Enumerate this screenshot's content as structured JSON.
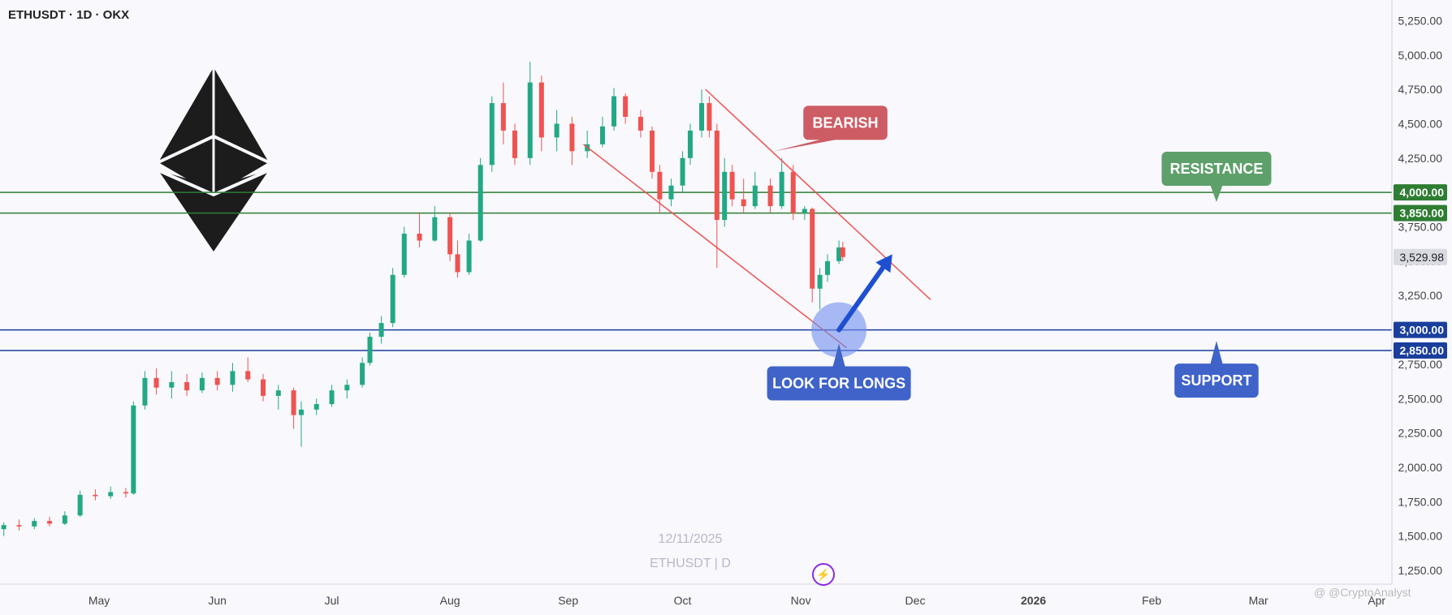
{
  "header": {
    "symbol_line": "ETHUSDT · 1D · OKX"
  },
  "watermark": {
    "date": "12/11/2025",
    "symbol": "ETHUSDT | D"
  },
  "credit": "@ @CryptoAnalyst",
  "icons": {
    "logo": "ethereum-logo-icon",
    "brand": "lightning-bolt-icon"
  },
  "colors": {
    "background": "#f8f8fd",
    "up": "#22a884",
    "down": "#ef5350",
    "resistance": "#2e7d32",
    "support": "#1a3e9c",
    "channel": "#ef5350",
    "bearish_label": "#cd5c64",
    "resistance_label": "#5da06a",
    "support_label": "#3f63c9",
    "long_arrow": "#1f4fd1"
  },
  "chart_data": {
    "type": "candlestick",
    "title": "ETHUSDT · 1D · OKX",
    "interval": "1D",
    "exchange": "OKX",
    "ylim": [
      1150,
      5400
    ],
    "y_ticks": [
      1250,
      1500,
      1750,
      2000,
      2250,
      2500,
      2750,
      3000,
      3250,
      3500,
      3750,
      4000,
      4250,
      4500,
      4750,
      5000,
      5250
    ],
    "y_tick_labels": [
      "1,250.00",
      "1,500.00",
      "1,750.00",
      "2,000.00",
      "2,250.00",
      "2,500.00",
      "2,750.00",
      "3,000.00",
      "3,250.00",
      "3,500.00",
      "3,750.00",
      "4,000.00",
      "4,250.00",
      "4,500.00",
      "4,750.00",
      "5,000.00",
      "5,250.00"
    ],
    "x_range": [
      "2025-04-05",
      "2026-04-05"
    ],
    "x_ticks": [
      {
        "date": "2025-05-01",
        "label": "May"
      },
      {
        "date": "2025-06-01",
        "label": "Jun"
      },
      {
        "date": "2025-07-01",
        "label": "Jul"
      },
      {
        "date": "2025-08-01",
        "label": "Aug"
      },
      {
        "date": "2025-09-01",
        "label": "Sep"
      },
      {
        "date": "2025-10-01",
        "label": "Oct"
      },
      {
        "date": "2025-11-01",
        "label": "Nov"
      },
      {
        "date": "2025-12-01",
        "label": "Dec"
      },
      {
        "date": "2026-01-01",
        "label": "2026"
      },
      {
        "date": "2026-02-01",
        "label": "Feb"
      },
      {
        "date": "2026-03-01",
        "label": "Mar"
      },
      {
        "date": "2026-04-01",
        "label": "Apr"
      }
    ],
    "last_price": {
      "value": 3529.98,
      "label": "3,529.98"
    },
    "grid": false,
    "candles": [
      [
        "2025-04-06",
        1550,
        1600,
        1500,
        1580
      ],
      [
        "2025-04-10",
        1580,
        1620,
        1540,
        1570
      ],
      [
        "2025-04-14",
        1570,
        1630,
        1550,
        1610
      ],
      [
        "2025-04-18",
        1610,
        1640,
        1570,
        1590
      ],
      [
        "2025-04-22",
        1590,
        1680,
        1580,
        1650
      ],
      [
        "2025-04-26",
        1650,
        1830,
        1640,
        1800
      ],
      [
        "2025-04-30",
        1800,
        1840,
        1760,
        1790
      ],
      [
        "2025-05-04",
        1790,
        1860,
        1770,
        1820
      ],
      [
        "2025-05-08",
        1820,
        1850,
        1780,
        1810
      ],
      [
        "2025-05-10",
        1810,
        2480,
        1800,
        2450
      ],
      [
        "2025-05-13",
        2450,
        2700,
        2420,
        2650
      ],
      [
        "2025-05-16",
        2650,
        2720,
        2530,
        2580
      ],
      [
        "2025-05-20",
        2580,
        2700,
        2500,
        2620
      ],
      [
        "2025-05-24",
        2620,
        2680,
        2520,
        2560
      ],
      [
        "2025-05-28",
        2560,
        2690,
        2540,
        2650
      ],
      [
        "2025-06-01",
        2650,
        2700,
        2560,
        2600
      ],
      [
        "2025-06-05",
        2600,
        2760,
        2550,
        2700
      ],
      [
        "2025-06-09",
        2700,
        2800,
        2620,
        2640
      ],
      [
        "2025-06-13",
        2640,
        2680,
        2480,
        2520
      ],
      [
        "2025-06-17",
        2520,
        2600,
        2420,
        2560
      ],
      [
        "2025-06-21",
        2560,
        2580,
        2280,
        2380
      ],
      [
        "2025-06-23",
        2380,
        2480,
        2150,
        2420
      ],
      [
        "2025-06-27",
        2420,
        2500,
        2380,
        2460
      ],
      [
        "2025-07-01",
        2460,
        2600,
        2440,
        2560
      ],
      [
        "2025-07-05",
        2560,
        2640,
        2500,
        2600
      ],
      [
        "2025-07-09",
        2600,
        2800,
        2580,
        2760
      ],
      [
        "2025-07-11",
        2760,
        2980,
        2740,
        2950
      ],
      [
        "2025-07-14",
        2950,
        3100,
        2900,
        3050
      ],
      [
        "2025-07-17",
        3050,
        3450,
        3020,
        3400
      ],
      [
        "2025-07-20",
        3400,
        3750,
        3380,
        3700
      ],
      [
        "2025-07-24",
        3700,
        3850,
        3600,
        3650
      ],
      [
        "2025-07-28",
        3650,
        3900,
        3640,
        3820
      ],
      [
        "2025-08-01",
        3820,
        3850,
        3500,
        3550
      ],
      [
        "2025-08-03",
        3550,
        3650,
        3380,
        3420
      ],
      [
        "2025-08-06",
        3420,
        3700,
        3400,
        3650
      ],
      [
        "2025-08-09",
        3650,
        4250,
        3640,
        4200
      ],
      [
        "2025-08-12",
        4200,
        4700,
        4150,
        4650
      ],
      [
        "2025-08-15",
        4650,
        4800,
        4350,
        4450
      ],
      [
        "2025-08-18",
        4450,
        4500,
        4200,
        4250
      ],
      [
        "2025-08-22",
        4250,
        4950,
        4200,
        4800
      ],
      [
        "2025-08-25",
        4800,
        4850,
        4300,
        4400
      ],
      [
        "2025-08-29",
        4400,
        4600,
        4300,
        4500
      ],
      [
        "2025-09-02",
        4500,
        4550,
        4200,
        4300
      ],
      [
        "2025-09-06",
        4300,
        4450,
        4250,
        4350
      ],
      [
        "2025-09-10",
        4350,
        4550,
        4330,
        4480
      ],
      [
        "2025-09-13",
        4480,
        4760,
        4450,
        4700
      ],
      [
        "2025-09-16",
        4700,
        4720,
        4500,
        4550
      ],
      [
        "2025-09-20",
        4550,
        4600,
        4400,
        4450
      ],
      [
        "2025-09-23",
        4450,
        4480,
        4100,
        4150
      ],
      [
        "2025-09-25",
        4150,
        4200,
        3850,
        3950
      ],
      [
        "2025-09-28",
        3950,
        4100,
        3900,
        4050
      ],
      [
        "2025-10-01",
        4050,
        4300,
        4000,
        4250
      ],
      [
        "2025-10-03",
        4250,
        4500,
        4200,
        4450
      ],
      [
        "2025-10-06",
        4450,
        4750,
        4400,
        4650
      ],
      [
        "2025-10-08",
        4650,
        4700,
        4400,
        4450
      ],
      [
        "2025-10-10",
        4450,
        4500,
        3450,
        3800
      ],
      [
        "2025-10-12",
        3800,
        4250,
        3750,
        4150
      ],
      [
        "2025-10-14",
        4150,
        4200,
        3900,
        3950
      ],
      [
        "2025-10-17",
        3950,
        4100,
        3850,
        3900
      ],
      [
        "2025-10-20",
        3900,
        4150,
        3880,
        4050
      ],
      [
        "2025-10-24",
        4050,
        4100,
        3850,
        3900
      ],
      [
        "2025-10-27",
        3900,
        4250,
        3880,
        4150
      ],
      [
        "2025-10-30",
        4150,
        4200,
        3800,
        3850
      ],
      [
        "2025-11-02",
        3850,
        3900,
        3800,
        3880
      ],
      [
        "2025-11-04",
        3880,
        3890,
        3200,
        3300
      ],
      [
        "2025-11-06",
        3300,
        3450,
        3150,
        3400
      ],
      [
        "2025-11-08",
        3400,
        3550,
        3350,
        3500
      ],
      [
        "2025-11-11",
        3500,
        3650,
        3480,
        3600
      ],
      [
        "2025-11-12",
        3600,
        3640,
        3500,
        3530
      ]
    ],
    "horizontal_levels": [
      {
        "value": 4000,
        "label": "4,000.00",
        "kind": "resistance"
      },
      {
        "value": 3850,
        "label": "3,850.00",
        "kind": "resistance"
      },
      {
        "value": 3000,
        "label": "3,000.00",
        "kind": "support"
      },
      {
        "value": 2850,
        "label": "2,850.00",
        "kind": "support"
      }
    ],
    "channel_lines": [
      {
        "from": {
          "date": "2025-10-07",
          "price": 4750
        },
        "to": {
          "date": "2025-12-05",
          "price": 3220
        }
      },
      {
        "from": {
          "date": "2025-09-05",
          "price": 4350
        },
        "to": {
          "date": "2025-11-13",
          "price": 2870
        }
      }
    ],
    "annotations": [
      {
        "text": "BEARISH",
        "kind": "callout-down-left",
        "anchor": {
          "date": "2025-10-25",
          "price": 4300
        }
      },
      {
        "text": "RESISTANCE",
        "kind": "callout-down",
        "anchor": {
          "date": "2026-02-18",
          "price": 3930
        }
      },
      {
        "text": "LOOK FOR LONGS",
        "kind": "callout-up",
        "anchor": {
          "date": "2025-11-11",
          "price": 2900
        }
      },
      {
        "text": "SUPPORT",
        "kind": "callout-up",
        "anchor": {
          "date": "2026-02-18",
          "price": 2920
        }
      }
    ],
    "long_arrow": {
      "from": {
        "date": "2025-11-11",
        "price": 3000
      },
      "to": {
        "date": "2025-11-25",
        "price": 3550
      }
    },
    "highlight_circle": {
      "date": "2025-11-11",
      "price": 3000
    }
  }
}
